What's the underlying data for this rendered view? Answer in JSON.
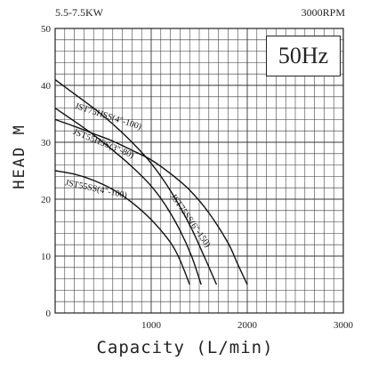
{
  "header": {
    "power_range": "5.5-7.5KW",
    "speed": "3000RPM",
    "frequency": "50Hz"
  },
  "chart_data": {
    "type": "line",
    "title": "",
    "xlabel": "Capacity (L/min)",
    "ylabel": "HEAD M",
    "xlim": [
      0,
      3000
    ],
    "ylim": [
      0,
      50
    ],
    "xticks": [
      1000,
      2000,
      3000
    ],
    "yticks": [
      0,
      10,
      20,
      30,
      40,
      50
    ],
    "grid": true,
    "series": [
      {
        "name": "JST75HSS(4\"-100)",
        "x": [
          0,
          200,
          400,
          600,
          800,
          1000,
          1200,
          1400,
          1550,
          1680
        ],
        "y": [
          41,
          38.5,
          36,
          33.2,
          30,
          26.3,
          21.5,
          15.5,
          10,
          5
        ]
      },
      {
        "name": "JST55HSS(3\"-80)",
        "x": [
          0,
          200,
          400,
          600,
          800,
          1000,
          1150,
          1300,
          1420,
          1520
        ],
        "y": [
          36,
          33.7,
          31.3,
          28.6,
          25.7,
          22.3,
          18.9,
          14.5,
          10,
          5
        ]
      },
      {
        "name": "JST75SS(6\"-150)",
        "x": [
          0,
          200,
          400,
          600,
          800,
          1000,
          1200,
          1400,
          1600,
          1800,
          1900,
          2000
        ],
        "y": [
          34,
          32.8,
          31.5,
          30.2,
          28.6,
          26.9,
          24.5,
          21.6,
          17.6,
          12.3,
          8.6,
          5
        ]
      },
      {
        "name": "JST55SS(4\"-100)",
        "x": [
          0,
          200,
          400,
          600,
          800,
          1000,
          1200,
          1300,
          1400
        ],
        "y": [
          25,
          24.4,
          23.3,
          21.7,
          19.4,
          16.4,
          12.4,
          9.3,
          5
        ]
      }
    ]
  }
}
